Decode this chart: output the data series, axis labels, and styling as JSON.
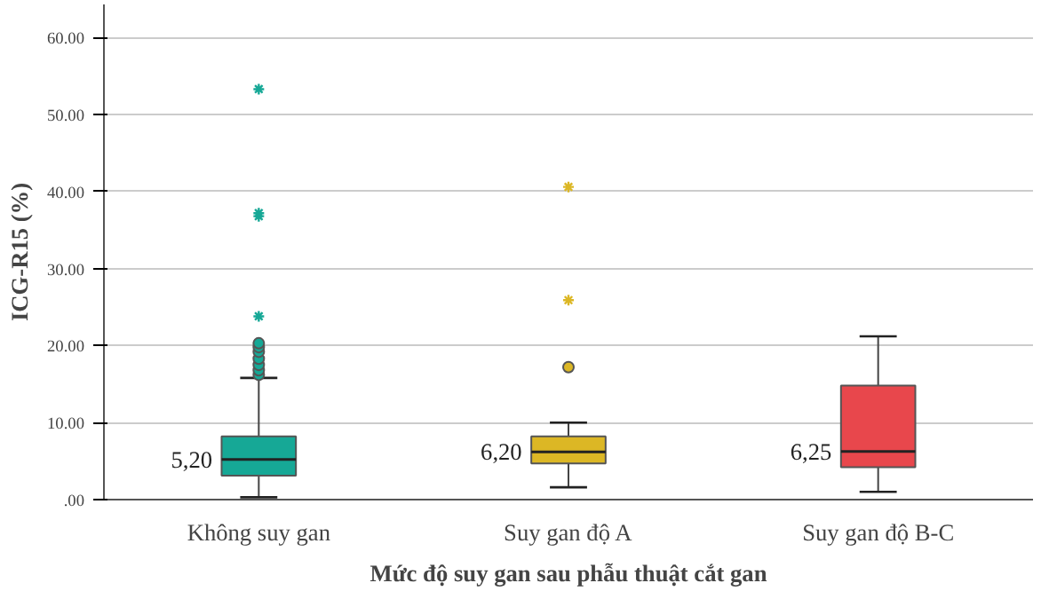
{
  "chart_data": {
    "type": "box",
    "xlabel": "Mức độ suy gan sau phẫu thuật cắt gan",
    "ylabel": "ICG-R15 (%)",
    "categories": [
      "Không suy gan",
      "Suy gan độ A",
      "Suy gan độ B-C"
    ],
    "colors": [
      "#16a896",
      "#dcb725",
      "#e8474c"
    ],
    "boxes": [
      {
        "low": 0.3,
        "q1": 3.1,
        "median": 5.2,
        "q3": 8.2,
        "high": 15.8,
        "outliers": [
          16.2,
          16.8,
          17.5,
          18.3,
          19.2,
          19.8,
          20.3,
          23.8,
          36.8,
          37.2,
          53.3
        ]
      },
      {
        "low": 1.6,
        "q1": 4.7,
        "median": 6.2,
        "q3": 8.2,
        "high": 10.0,
        "outliers": [
          17.2,
          25.9,
          40.6
        ]
      },
      {
        "low": 1.0,
        "q1": 4.2,
        "median": 6.25,
        "q3": 14.8,
        "high": 21.2
      }
    ],
    "annotations": [
      {
        "text": "5,20",
        "x": "Không suy gan",
        "y": 5.2
      },
      {
        "text": "6,20",
        "x": "Suy gan độ A",
        "y": 6.2
      },
      {
        "text": "6,25",
        "x": "Suy gan độ B-C",
        "y": 6.25
      }
    ],
    "ylim": [
      0,
      64.3
    ],
    "yticks": [
      {
        "value": 0,
        "label": ".00"
      },
      {
        "value": 10,
        "label": "10.00"
      },
      {
        "value": 20,
        "label": "20.00"
      },
      {
        "value": 30,
        "label": "30.00"
      },
      {
        "value": 40,
        "label": "40.00"
      },
      {
        "value": 50,
        "label": "50.00"
      },
      {
        "value": 60,
        "label": "60.00"
      }
    ],
    "grid": "y"
  }
}
